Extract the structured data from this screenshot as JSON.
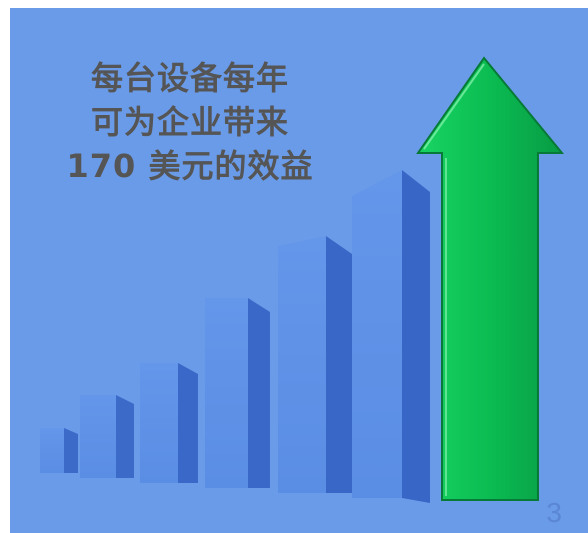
{
  "slide": {
    "headline_lines": [
      "每台设备每年",
      "可为企业带来",
      "170 美元的效益"
    ],
    "page_number": "3"
  },
  "colors": {
    "background": "#6a9be8",
    "bar_front": "#5b8ee6",
    "bar_side": "#3a68c8",
    "arrow": "#0fbf55",
    "text": "#555555"
  },
  "icons": {
    "chart": "ascending-bars-icon",
    "arrow": "up-arrow-icon"
  }
}
